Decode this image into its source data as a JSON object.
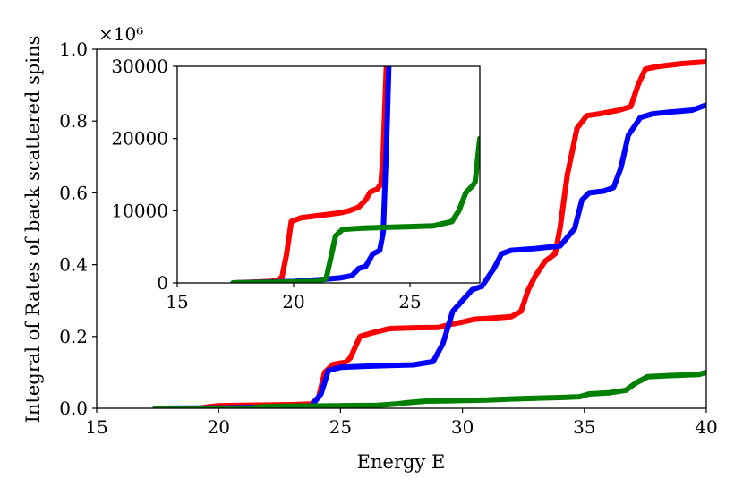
{
  "chart_data": [
    {
      "type": "line",
      "title": "",
      "xlabel": "Energy E",
      "ylabel": "Integral of Rates of back scattered spins",
      "y_multiplier_label": "×10⁶",
      "xlim": [
        15,
        40
      ],
      "ylim": [
        0,
        1.0
      ],
      "xticks": [
        15,
        20,
        25,
        30,
        35,
        40
      ],
      "yticks": [
        0.0,
        0.2,
        0.4,
        0.6,
        0.8,
        1.0
      ],
      "xtick_labels": [
        "15",
        "20",
        "25",
        "30",
        "35",
        "40"
      ],
      "ytick_labels": [
        "0.0",
        "0.2",
        "0.4",
        "0.6",
        "0.8",
        "1.0"
      ],
      "series": [
        {
          "name": "red",
          "color": "#ff0000",
          "points": [
            [
              19.2,
              0
            ],
            [
              19.6,
              0.004
            ],
            [
              20,
              0.007
            ],
            [
              21,
              0.008
            ],
            [
              22,
              0.009
            ],
            [
              23,
              0.01
            ],
            [
              23.8,
              0.012
            ],
            [
              24.1,
              0.03
            ],
            [
              24.35,
              0.1
            ],
            [
              24.7,
              0.122
            ],
            [
              25.2,
              0.128
            ],
            [
              25.4,
              0.14
            ],
            [
              25.8,
              0.2
            ],
            [
              26.3,
              0.21
            ],
            [
              26.6,
              0.215
            ],
            [
              27,
              0.222
            ],
            [
              28,
              0.224
            ],
            [
              29,
              0.225
            ],
            [
              29.6,
              0.235
            ],
            [
              30,
              0.24
            ],
            [
              30.5,
              0.248
            ],
            [
              31,
              0.25
            ],
            [
              32,
              0.255
            ],
            [
              32.4,
              0.27
            ],
            [
              32.7,
              0.33
            ],
            [
              33,
              0.37
            ],
            [
              33.4,
              0.41
            ],
            [
              33.8,
              0.43
            ],
            [
              34,
              0.5
            ],
            [
              34.3,
              0.65
            ],
            [
              34.7,
              0.78
            ],
            [
              35.1,
              0.815
            ],
            [
              35.6,
              0.82
            ],
            [
              36,
              0.825
            ],
            [
              36.4,
              0.83
            ],
            [
              36.9,
              0.84
            ],
            [
              37.2,
              0.9
            ],
            [
              37.5,
              0.945
            ],
            [
              38,
              0.952
            ],
            [
              39,
              0.96
            ],
            [
              40,
              0.965
            ]
          ]
        },
        {
          "name": "blue",
          "color": "#0000ff",
          "points": [
            [
              17.4,
              0
            ],
            [
              20,
              0.001
            ],
            [
              22,
              0.003
            ],
            [
              23.8,
              0.006
            ],
            [
              24.2,
              0.04
            ],
            [
              24.5,
              0.105
            ],
            [
              25,
              0.114
            ],
            [
              26,
              0.117
            ],
            [
              27,
              0.119
            ],
            [
              28,
              0.121
            ],
            [
              28.8,
              0.13
            ],
            [
              29.2,
              0.18
            ],
            [
              29.6,
              0.27
            ],
            [
              30,
              0.3
            ],
            [
              30.4,
              0.33
            ],
            [
              30.8,
              0.34
            ],
            [
              31.3,
              0.39
            ],
            [
              31.6,
              0.43
            ],
            [
              32,
              0.44
            ],
            [
              33,
              0.445
            ],
            [
              34,
              0.452
            ],
            [
              34.6,
              0.5
            ],
            [
              34.9,
              0.58
            ],
            [
              35.2,
              0.6
            ],
            [
              35.8,
              0.605
            ],
            [
              36.2,
              0.615
            ],
            [
              36.5,
              0.67
            ],
            [
              36.8,
              0.76
            ],
            [
              37.3,
              0.81
            ],
            [
              37.8,
              0.82
            ],
            [
              38.5,
              0.825
            ],
            [
              39.4,
              0.83
            ],
            [
              40,
              0.845
            ]
          ]
        },
        {
          "name": "green",
          "color": "#008000",
          "points": [
            [
              17.4,
              0
            ],
            [
              20,
              0.0003
            ],
            [
              21.3,
              0.0006
            ],
            [
              21.8,
              0.004
            ],
            [
              23,
              0.006
            ],
            [
              25,
              0.007
            ],
            [
              26.5,
              0.008
            ],
            [
              27.3,
              0.012
            ],
            [
              27.8,
              0.016
            ],
            [
              28.5,
              0.02
            ],
            [
              29.5,
              0.021
            ],
            [
              31,
              0.023
            ],
            [
              32,
              0.026
            ],
            [
              33,
              0.028
            ],
            [
              34,
              0.03
            ],
            [
              34.8,
              0.032
            ],
            [
              35.2,
              0.04
            ],
            [
              36,
              0.043
            ],
            [
              36.7,
              0.05
            ],
            [
              37.1,
              0.07
            ],
            [
              37.6,
              0.088
            ],
            [
              38.5,
              0.091
            ],
            [
              39.7,
              0.094
            ],
            [
              40,
              0.1
            ]
          ]
        }
      ]
    },
    {
      "type": "line",
      "title": "",
      "xlabel": "",
      "ylabel": "",
      "xlim": [
        15,
        28
      ],
      "ylim": [
        0,
        30000
      ],
      "xticks": [
        15,
        20,
        25
      ],
      "yticks": [
        0,
        10000,
        20000,
        30000
      ],
      "xtick_labels": [
        "15",
        "20",
        "25"
      ],
      "ytick_labels": [
        "0",
        "10000",
        "20000",
        "30000"
      ],
      "series": [
        {
          "name": "red",
          "color": "#ff0000",
          "points": [
            [
              17.4,
              0
            ],
            [
              19,
              200
            ],
            [
              19.3,
              400
            ],
            [
              19.5,
              800
            ],
            [
              19.7,
              4000
            ],
            [
              19.9,
              8500
            ],
            [
              20.3,
              9000
            ],
            [
              21,
              9300
            ],
            [
              22,
              9700
            ],
            [
              22.4,
              10000
            ],
            [
              22.8,
              10500
            ],
            [
              23.1,
              11500
            ],
            [
              23.3,
              12600
            ],
            [
              23.6,
              13000
            ],
            [
              23.75,
              13700
            ],
            [
              23.85,
              18000
            ],
            [
              23.95,
              27000
            ],
            [
              24.0,
              31000
            ]
          ]
        },
        {
          "name": "blue",
          "color": "#0000ff",
          "points": [
            [
              17.4,
              0
            ],
            [
              20,
              200
            ],
            [
              21.3,
              500
            ],
            [
              22,
              700
            ],
            [
              22.5,
              1000
            ],
            [
              22.8,
              2000
            ],
            [
              23.1,
              2300
            ],
            [
              23.4,
              4000
            ],
            [
              23.7,
              4500
            ],
            [
              23.85,
              7000
            ],
            [
              24.0,
              20000
            ],
            [
              24.1,
              31000
            ]
          ]
        },
        {
          "name": "green",
          "color": "#008000",
          "points": [
            [
              17.4,
              0
            ],
            [
              21,
              200
            ],
            [
              21.4,
              600
            ],
            [
              21.6,
              3500
            ],
            [
              21.8,
              6500
            ],
            [
              22.1,
              7400
            ],
            [
              23,
              7600
            ],
            [
              24,
              7700
            ],
            [
              25,
              7800
            ],
            [
              26,
              7900
            ],
            [
              26.4,
              8200
            ],
            [
              26.8,
              8500
            ],
            [
              27.1,
              10000
            ],
            [
              27.4,
              12500
            ],
            [
              27.7,
              13500
            ],
            [
              27.8,
              14000
            ],
            [
              28,
              20000
            ]
          ]
        }
      ]
    }
  ]
}
